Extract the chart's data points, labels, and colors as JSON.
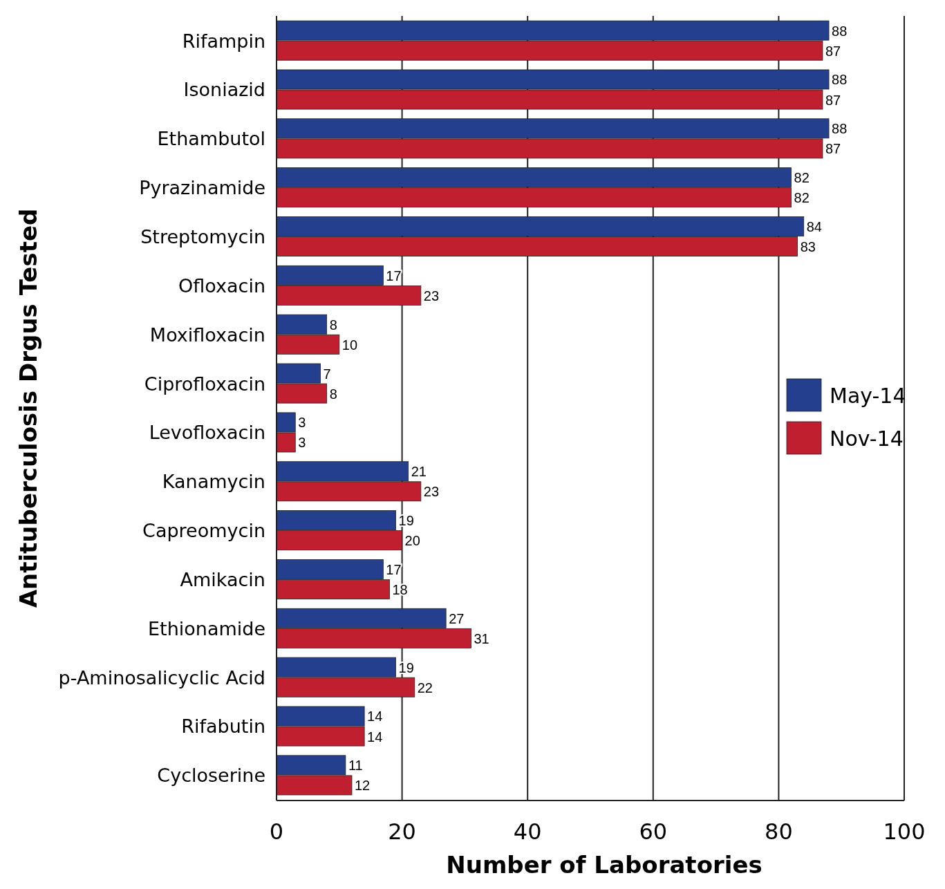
{
  "chart_data": {
    "type": "bar",
    "orientation": "horizontal",
    "xlabel": "Number of Laboratories",
    "ylabel": "Antituberculosis Drgus Tested",
    "categories": [
      "Rifampin",
      "Isoniazid",
      "Ethambutol",
      "Pyrazinamide",
      "Streptomycin",
      "Ofloxacin",
      "Moxifloxacin",
      "Ciprofloxacin",
      "Levofloxacin",
      "Kanamycin",
      "Capreomycin",
      "Amikacin",
      "Ethionamide",
      "p-Aminosalicyclic Acid",
      "Rifabutin",
      "Cycloserine"
    ],
    "series": [
      {
        "name": "May-14",
        "color": "#253f8f",
        "values": [
          88,
          88,
          88,
          82,
          84,
          17,
          8,
          7,
          3,
          21,
          19,
          17,
          27,
          19,
          14,
          11
        ]
      },
      {
        "name": "Nov-14",
        "color": "#c01f2f",
        "values": [
          87,
          87,
          87,
          82,
          83,
          23,
          10,
          8,
          3,
          23,
          20,
          18,
          31,
          22,
          14,
          12
        ]
      }
    ],
    "xlim": [
      0,
      100
    ],
    "xticks": [
      0,
      20,
      40,
      60,
      80,
      100
    ],
    "grid": "x",
    "legend": "right",
    "data_labels": true
  }
}
